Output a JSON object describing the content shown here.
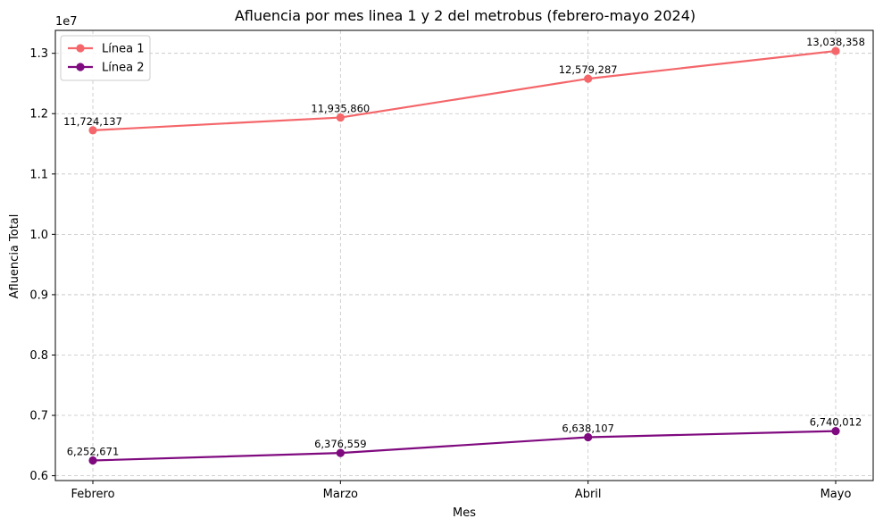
{
  "chart_data": {
    "type": "line",
    "title": "Afluencia por mes linea 1 y 2 del metrobus (febrero-mayo 2024)",
    "xlabel": "Mes",
    "ylabel": "Afluencia Total",
    "y_offset_label": "1e7",
    "categories": [
      "Febrero",
      "Marzo",
      "Abril",
      "Mayo"
    ],
    "ylim": [
      5920000,
      13380000
    ],
    "yticks": [
      6000000,
      7000000,
      8000000,
      9000000,
      10000000,
      11000000,
      12000000,
      13000000
    ],
    "ytick_labels": [
      "0.6",
      "0.7",
      "0.8",
      "0.9",
      "1.0",
      "1.1",
      "1.2",
      "1.3"
    ],
    "grid": true,
    "legend_position": "top-left",
    "series": [
      {
        "name": "Línea 1",
        "color": "#f4666a",
        "values": [
          11724137,
          11935860,
          12579287,
          13038358
        ],
        "labels": [
          "11,724,137",
          "11,935,860",
          "12,579,287",
          "13,038,358"
        ]
      },
      {
        "name": "Línea 2",
        "color": "#7f0a7f",
        "values": [
          6252671,
          6376559,
          6638107,
          6740012
        ],
        "labels": [
          "6,252,671",
          "6,376,559",
          "6,638,107",
          "6,740,012"
        ]
      }
    ]
  }
}
